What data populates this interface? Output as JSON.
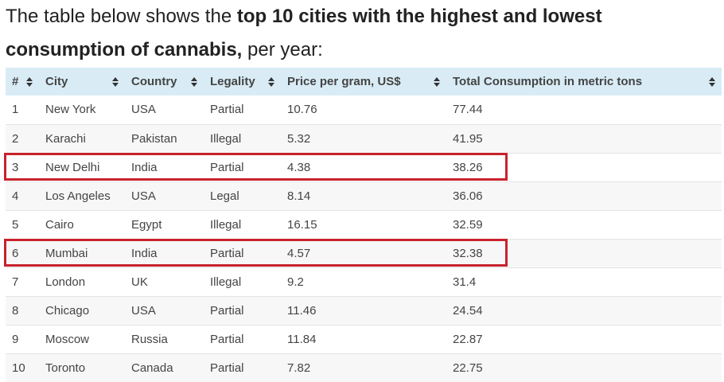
{
  "intro": {
    "part1": "The table below shows the ",
    "bold": "top 10 cities with the highest and lowest consumption of cannabis,",
    "part2": " per year:"
  },
  "table": {
    "headers": [
      "#",
      "City",
      "Country",
      "Legality",
      "Price per gram, US$",
      "Total Consumption in metric tons"
    ],
    "rows": [
      [
        "1",
        "New York",
        "USA",
        "Partial",
        "10.76",
        "77.44"
      ],
      [
        "2",
        "Karachi",
        "Pakistan",
        "Illegal",
        "5.32",
        "41.95"
      ],
      [
        "3",
        "New Delhi",
        "India",
        "Partial",
        "4.38",
        "38.26"
      ],
      [
        "4",
        "Los Angeles",
        "USA",
        "Legal",
        "8.14",
        "36.06"
      ],
      [
        "5",
        "Cairo",
        "Egypt",
        "Illegal",
        "16.15",
        "32.59"
      ],
      [
        "6",
        "Mumbai",
        "India",
        "Partial",
        "4.57",
        "32.38"
      ],
      [
        "7",
        "London",
        "UK",
        "Illegal",
        "9.2",
        "31.4"
      ],
      [
        "8",
        "Chicago",
        "USA",
        "Partial",
        "11.46",
        "24.54"
      ],
      [
        "9",
        "Moscow",
        "Russia",
        "Partial",
        "11.84",
        "22.87"
      ],
      [
        "10",
        "Toronto",
        "Canada",
        "Partial",
        "7.82",
        "22.75"
      ]
    ],
    "highlighted_rows": [
      "3",
      "6"
    ]
  },
  "colors": {
    "header_bg": "#d9ecf6",
    "highlight_border": "#c8232c",
    "stripe_bg": "#f7f7f7"
  }
}
